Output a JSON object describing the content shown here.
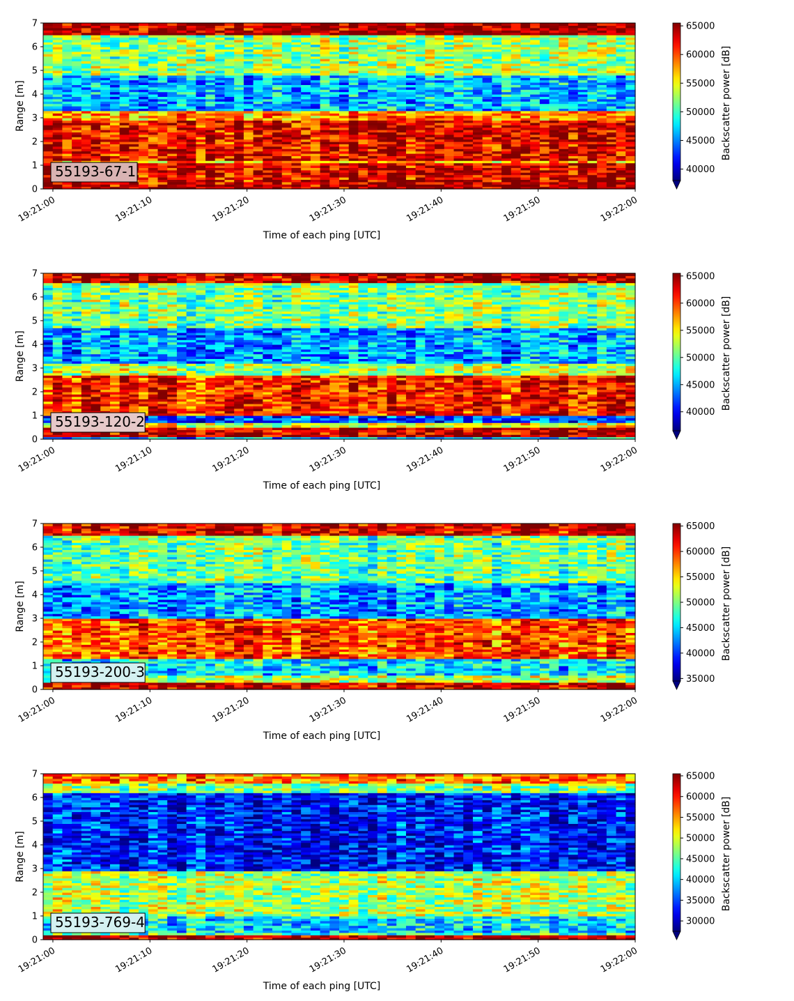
{
  "colormap": "jet",
  "chart_data": [
    {
      "type": "heatmap",
      "panel_label": "55193-67-1",
      "label_box_color": "#d9b3b3",
      "xlabel": "Time of each ping [UTC]",
      "ylabel": "Range [m]",
      "xlim": [
        "19:20:59",
        "19:22:00"
      ],
      "xticks": [
        "19:21:00",
        "19:21:10",
        "19:21:20",
        "19:21:30",
        "19:21:40",
        "19:21:50",
        "19:22:00"
      ],
      "ylim": [
        0,
        7
      ],
      "yticks": [
        "0",
        "1",
        "2",
        "3",
        "4",
        "5",
        "6",
        "7"
      ],
      "colorbar": {
        "label": "Backscatter power [dB]",
        "vmin": 38000,
        "vmax": 65500,
        "ticks": [
          40000,
          45000,
          50000,
          55000,
          60000,
          65000
        ],
        "tick_labels": [
          "40000",
          "45000",
          "50000",
          "55000",
          "60000",
          "65000"
        ],
        "extend": "min"
      },
      "bands": [
        {
          "range_m": [
            0.0,
            0.25
          ],
          "level": 0.96
        },
        {
          "range_m": [
            0.25,
            1.1
          ],
          "level": 0.9
        },
        {
          "range_m": [
            1.1,
            1.25
          ],
          "level": 0.68
        },
        {
          "range_m": [
            1.25,
            2.9
          ],
          "level": 0.88
        },
        {
          "range_m": [
            2.9,
            3.3
          ],
          "level": 0.72
        },
        {
          "range_m": [
            3.3,
            4.8
          ],
          "level": 0.3
        },
        {
          "range_m": [
            4.8,
            6.5
          ],
          "level": 0.52
        },
        {
          "range_m": [
            6.5,
            7.0
          ],
          "level": 0.95
        }
      ]
    },
    {
      "type": "heatmap",
      "panel_label": "55193-120-2",
      "label_box_color": "#e6c9c9",
      "xlabel": "Time of each ping [UTC]",
      "ylabel": "Range [m]",
      "xlim": [
        "19:20:59",
        "19:22:00"
      ],
      "xticks": [
        "19:21:00",
        "19:21:10",
        "19:21:20",
        "19:21:30",
        "19:21:40",
        "19:21:50",
        "19:22:00"
      ],
      "ylim": [
        0,
        7
      ],
      "yticks": [
        "0",
        "1",
        "2",
        "3",
        "4",
        "5",
        "6",
        "7"
      ],
      "colorbar": {
        "label": "Backscatter power [dB]",
        "vmin": 36500,
        "vmax": 65500,
        "ticks": [
          40000,
          45000,
          50000,
          55000,
          60000,
          65000
        ],
        "tick_labels": [
          "40000",
          "45000",
          "50000",
          "55000",
          "60000",
          "65000"
        ],
        "extend": "min"
      },
      "bands": [
        {
          "range_m": [
            0.0,
            0.15
          ],
          "level": 0.3
        },
        {
          "range_m": [
            0.15,
            0.5
          ],
          "level": 0.92
        },
        {
          "range_m": [
            0.5,
            0.7
          ],
          "level": 0.62
        },
        {
          "range_m": [
            0.7,
            1.0
          ],
          "level": 0.2
        },
        {
          "range_m": [
            1.0,
            2.7
          ],
          "level": 0.85
        },
        {
          "range_m": [
            2.7,
            3.2
          ],
          "level": 0.55
        },
        {
          "range_m": [
            3.2,
            4.7
          ],
          "level": 0.28
        },
        {
          "range_m": [
            4.7,
            6.6
          ],
          "level": 0.5
        },
        {
          "range_m": [
            6.6,
            7.0
          ],
          "level": 0.93
        }
      ]
    },
    {
      "type": "heatmap",
      "panel_label": "55193-200-3",
      "label_box_color": "#d4f1f1",
      "xlabel": "Time of each ping [UTC]",
      "ylabel": "Range [m]",
      "xlim": [
        "19:20:59",
        "19:22:00"
      ],
      "xticks": [
        "19:21:00",
        "19:21:10",
        "19:21:20",
        "19:21:30",
        "19:21:40",
        "19:21:50",
        "19:22:00"
      ],
      "ylim": [
        0,
        7
      ],
      "yticks": [
        "0",
        "1",
        "2",
        "3",
        "4",
        "5",
        "6",
        "7"
      ],
      "colorbar": {
        "label": "Backscatter power [dB]",
        "vmin": 34500,
        "vmax": 65500,
        "ticks": [
          35000,
          40000,
          45000,
          50000,
          55000,
          60000,
          65000
        ],
        "tick_labels": [
          "35000",
          "40000",
          "45000",
          "50000",
          "55000",
          "60000",
          "65000"
        ],
        "extend": "min"
      },
      "bands": [
        {
          "range_m": [
            0.0,
            0.3
          ],
          "level": 0.92
        },
        {
          "range_m": [
            0.3,
            0.6
          ],
          "level": 0.55
        },
        {
          "range_m": [
            0.6,
            1.3
          ],
          "level": 0.35
        },
        {
          "range_m": [
            1.3,
            3.0
          ],
          "level": 0.8
        },
        {
          "range_m": [
            3.0,
            4.5
          ],
          "level": 0.28
        },
        {
          "range_m": [
            4.5,
            6.5
          ],
          "level": 0.48
        },
        {
          "range_m": [
            6.5,
            7.0
          ],
          "level": 0.9
        }
      ]
    },
    {
      "type": "heatmap",
      "panel_label": "55193-769-4",
      "label_box_color": "#d4f1f1",
      "xlabel": "Time of each ping [UTC]",
      "ylabel": "Range [m]",
      "xlim": [
        "19:20:59",
        "19:22:00"
      ],
      "xticks": [
        "19:21:00",
        "19:21:10",
        "19:21:20",
        "19:21:30",
        "19:21:40",
        "19:21:50",
        "19:22:00"
      ],
      "ylim": [
        0,
        7
      ],
      "yticks": [
        "0",
        "1",
        "2",
        "3",
        "4",
        "5",
        "6",
        "7"
      ],
      "colorbar": {
        "label": "Backscatter power [dB]",
        "vmin": 27500,
        "vmax": 65500,
        "ticks": [
          30000,
          35000,
          40000,
          45000,
          50000,
          55000,
          60000,
          65000
        ],
        "tick_labels": [
          "30000",
          "35000",
          "40000",
          "45000",
          "50000",
          "55000",
          "60000",
          "65000"
        ],
        "extend": "min"
      },
      "bands": [
        {
          "range_m": [
            0.0,
            0.2
          ],
          "level": 0.95
        },
        {
          "range_m": [
            0.2,
            0.35
          ],
          "level": 0.45
        },
        {
          "range_m": [
            0.35,
            1.0
          ],
          "level": 0.35
        },
        {
          "range_m": [
            1.0,
            2.9
          ],
          "level": 0.55
        },
        {
          "range_m": [
            2.9,
            6.2
          ],
          "level": 0.15
        },
        {
          "range_m": [
            6.2,
            6.6
          ],
          "level": 0.5
        },
        {
          "range_m": [
            6.6,
            7.0
          ],
          "level": 0.75
        }
      ]
    }
  ]
}
